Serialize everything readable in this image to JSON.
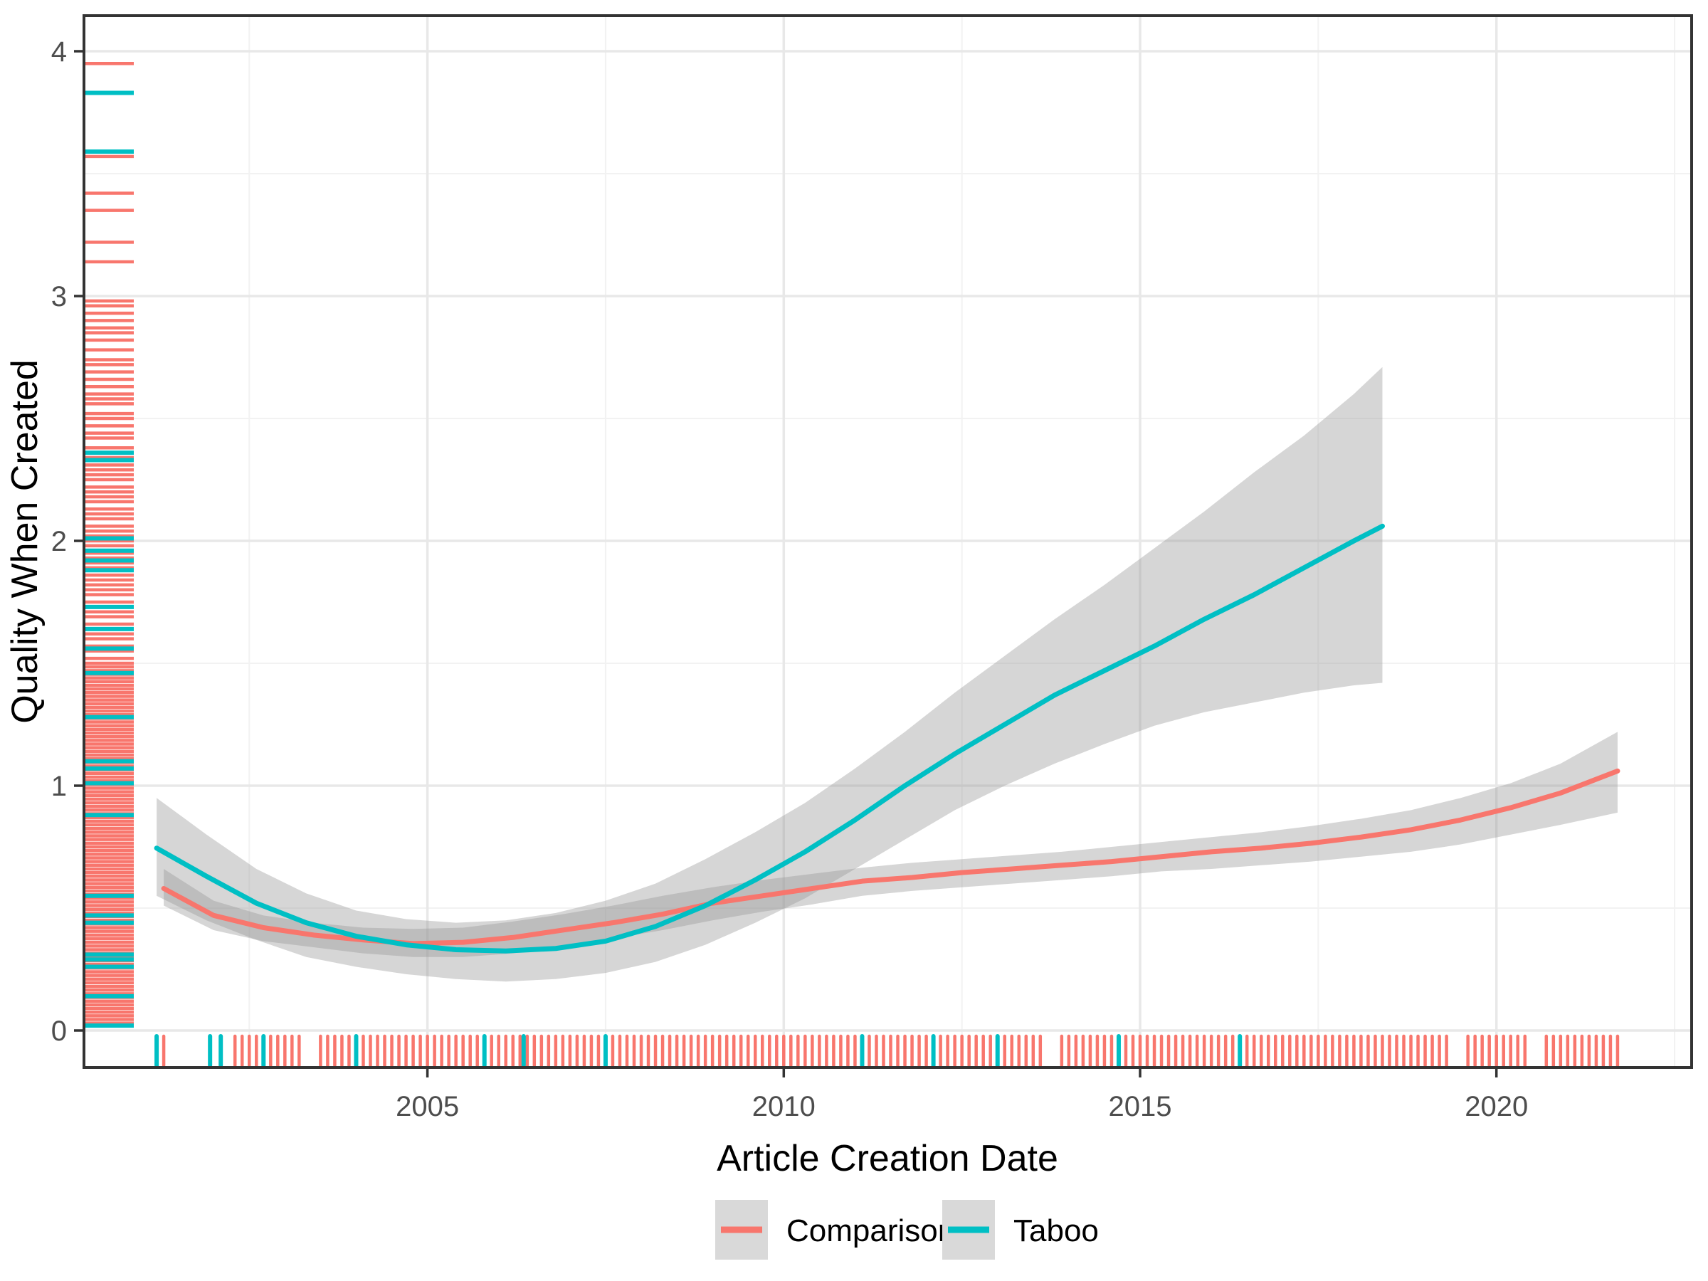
{
  "chart_data": {
    "type": "line",
    "title": "",
    "xlabel": "Article Creation Date",
    "ylabel": "Quality When Created",
    "xlim": [
      2000.18,
      2022.74
    ],
    "ylim": [
      -0.151,
      4.145
    ],
    "grid": true,
    "legend_position": "bottom",
    "x_ticks": [
      2005,
      2010,
      2015,
      2020
    ],
    "x_tick_labels": [
      "2005",
      "2010",
      "2015",
      "2020"
    ],
    "x_minor": [
      2002.5,
      2007.5,
      2012.5,
      2017.5,
      2022.5
    ],
    "y_ticks": [
      0,
      1,
      2,
      3,
      4
    ],
    "y_tick_labels": [
      "0",
      "1",
      "2",
      "3",
      "4"
    ],
    "y_minor": [
      0.5,
      1.5,
      2.5,
      3.5
    ],
    "ci_color": "#999999",
    "ci_opacity": 0.4,
    "panel_border_color": "#333333",
    "grid_major_color": "#e8e8e8",
    "grid_minor_color": "#f2f2f2",
    "series": [
      {
        "name": "Comparison",
        "color": "#F8766D",
        "x": [
          2001.3,
          2002,
          2002.7,
          2003.4,
          2004.1,
          2004.8,
          2005.5,
          2006.2,
          2006.9,
          2007.6,
          2008.3,
          2009,
          2009.7,
          2010.4,
          2011.1,
          2011.8,
          2012.5,
          2013.2,
          2013.9,
          2014.6,
          2015.3,
          2016,
          2016.7,
          2017.4,
          2018.1,
          2018.8,
          2019.5,
          2020.2,
          2020.9,
          2021.7
        ],
        "y": [
          0.58,
          0.47,
          0.42,
          0.39,
          0.37,
          0.355,
          0.36,
          0.38,
          0.41,
          0.44,
          0.475,
          0.52,
          0.55,
          0.58,
          0.61,
          0.625,
          0.645,
          0.66,
          0.675,
          0.69,
          0.71,
          0.73,
          0.745,
          0.765,
          0.79,
          0.82,
          0.86,
          0.91,
          0.97,
          1.06
        ],
        "ci_upper": [
          0.66,
          0.53,
          0.47,
          0.44,
          0.42,
          0.415,
          0.42,
          0.445,
          0.475,
          0.51,
          0.55,
          0.585,
          0.615,
          0.64,
          0.665,
          0.685,
          0.7,
          0.715,
          0.73,
          0.75,
          0.77,
          0.79,
          0.81,
          0.835,
          0.865,
          0.9,
          0.95,
          1.01,
          1.09,
          1.22
        ],
        "ci_lower": [
          0.51,
          0.41,
          0.365,
          0.34,
          0.315,
          0.3,
          0.3,
          0.315,
          0.345,
          0.375,
          0.41,
          0.45,
          0.485,
          0.515,
          0.55,
          0.57,
          0.585,
          0.6,
          0.615,
          0.63,
          0.65,
          0.66,
          0.675,
          0.69,
          0.71,
          0.73,
          0.76,
          0.8,
          0.84,
          0.89
        ]
      },
      {
        "name": "Taboo",
        "color": "#00BFC4",
        "x": [
          2001.2,
          2001.9,
          2002.6,
          2003.3,
          2004,
          2004.7,
          2005.4,
          2006.1,
          2006.8,
          2007.5,
          2008.2,
          2008.9,
          2009.6,
          2010.3,
          2011,
          2011.7,
          2012.4,
          2013.1,
          2013.8,
          2014.5,
          2015.2,
          2015.9,
          2016.6,
          2017.3,
          2018,
          2018.4
        ],
        "y": [
          0.745,
          0.63,
          0.52,
          0.44,
          0.385,
          0.35,
          0.33,
          0.325,
          0.335,
          0.365,
          0.425,
          0.51,
          0.615,
          0.73,
          0.86,
          1.0,
          1.13,
          1.25,
          1.37,
          1.47,
          1.57,
          1.68,
          1.78,
          1.89,
          2.0,
          2.06
        ],
        "ci_upper": [
          0.95,
          0.8,
          0.66,
          0.56,
          0.49,
          0.455,
          0.44,
          0.45,
          0.48,
          0.53,
          0.6,
          0.7,
          0.81,
          0.93,
          1.07,
          1.22,
          1.38,
          1.53,
          1.68,
          1.82,
          1.97,
          2.12,
          2.28,
          2.43,
          2.6,
          2.71
        ],
        "ci_lower": [
          0.55,
          0.45,
          0.37,
          0.3,
          0.26,
          0.23,
          0.21,
          0.2,
          0.21,
          0.235,
          0.28,
          0.35,
          0.44,
          0.54,
          0.66,
          0.78,
          0.9,
          1.0,
          1.09,
          1.17,
          1.245,
          1.3,
          1.34,
          1.38,
          1.41,
          1.42
        ]
      }
    ],
    "rug_left": {
      "comparison": [
        3.95,
        3.57,
        3.42,
        3.35,
        3.22,
        3.14,
        2.98,
        2.96,
        2.93,
        2.9,
        2.87,
        2.85,
        2.82,
        2.78,
        2.74,
        2.72,
        2.69,
        2.66,
        2.63,
        2.6,
        2.58,
        2.56,
        2.52,
        2.5,
        2.47,
        2.44,
        2.42,
        2.38,
        2.36,
        2.34,
        2.31,
        2.29,
        2.27,
        2.25,
        2.22,
        2.2,
        2.18,
        2.16,
        2.13,
        2.11,
        2.09,
        2.06,
        2.04,
        2.02,
        2.0,
        1.98,
        1.95,
        1.93,
        1.91,
        1.89,
        1.86,
        1.84,
        1.82,
        1.8,
        1.78,
        1.75,
        1.73,
        1.71,
        1.69,
        1.66,
        1.64,
        1.62,
        1.6,
        1.57,
        1.55,
        1.52,
        1.5,
        1.485,
        1.47,
        1.455,
        1.44,
        1.425,
        1.41,
        1.395,
        1.38,
        1.365,
        1.35,
        1.335,
        1.32,
        1.305,
        1.29,
        1.275,
        1.26,
        1.245,
        1.23,
        1.215,
        1.2,
        1.185,
        1.17,
        1.155,
        1.14,
        1.125,
        1.11,
        1.095,
        1.08,
        1.065,
        1.05,
        1.035,
        1.02,
        1.005,
        0.99,
        0.975,
        0.96,
        0.945,
        0.93,
        0.915,
        0.9,
        0.885,
        0.87,
        0.855,
        0.84,
        0.825,
        0.81,
        0.795,
        0.78,
        0.765,
        0.75,
        0.735,
        0.72,
        0.705,
        0.69,
        0.675,
        0.66,
        0.645,
        0.63,
        0.615,
        0.6,
        0.585,
        0.57,
        0.555,
        0.54,
        0.525,
        0.51,
        0.495,
        0.48,
        0.465,
        0.45,
        0.435,
        0.42,
        0.405,
        0.39,
        0.375,
        0.36,
        0.345,
        0.33,
        0.315,
        0.3,
        0.285,
        0.27,
        0.255,
        0.24,
        0.225,
        0.21,
        0.195,
        0.18,
        0.165,
        0.15,
        0.135,
        0.12,
        0.105,
        0.09,
        0.075,
        0.06,
        0.045,
        0.03
      ],
      "taboo": [
        3.83,
        3.59,
        2.36,
        2.33,
        2.01,
        1.96,
        1.92,
        1.88,
        1.73,
        1.64,
        1.56,
        1.46,
        1.28,
        1.1,
        1.07,
        1.01,
        0.88,
        0.55,
        0.47,
        0.44,
        0.31,
        0.29,
        0.26,
        0.14,
        0.02
      ]
    },
    "rug_bottom": {
      "comparison": [
        2001.3,
        2002.3,
        2002.4,
        2002.5,
        2002.6,
        2002.7,
        2002.8,
        2002.9,
        2003,
        2003.1,
        2003.2,
        2003.5,
        2003.6,
        2003.7,
        2003.8,
        2003.9,
        2004,
        2004.1,
        2004.2,
        2004.3,
        2004.4,
        2004.5,
        2004.6,
        2004.7,
        2004.8,
        2004.9,
        2005,
        2005.1,
        2005.2,
        2005.3,
        2005.4,
        2005.5,
        2005.6,
        2005.7,
        2005.8,
        2005.9,
        2006,
        2006.1,
        2006.2,
        2006.3,
        2006.4,
        2006.5,
        2006.6,
        2006.7,
        2006.8,
        2006.9,
        2007,
        2007.1,
        2007.2,
        2007.3,
        2007.4,
        2007.5,
        2007.6,
        2007.7,
        2007.8,
        2007.9,
        2008,
        2008.1,
        2008.2,
        2008.3,
        2008.4,
        2008.5,
        2008.6,
        2008.7,
        2008.8,
        2008.9,
        2009,
        2009.1,
        2009.2,
        2009.3,
        2009.4,
        2009.5,
        2009.6,
        2009.7,
        2009.8,
        2009.9,
        2010,
        2010.1,
        2010.2,
        2010.3,
        2010.4,
        2010.5,
        2010.6,
        2010.7,
        2010.8,
        2010.9,
        2011,
        2011.1,
        2011.2,
        2011.3,
        2011.4,
        2011.5,
        2011.6,
        2011.7,
        2011.8,
        2011.9,
        2012,
        2012.1,
        2012.2,
        2012.3,
        2012.4,
        2012.5,
        2012.6,
        2012.7,
        2012.8,
        2012.9,
        2013,
        2013.1,
        2013.2,
        2013.3,
        2013.4,
        2013.5,
        2013.6,
        2013.9,
        2014,
        2014.1,
        2014.2,
        2014.3,
        2014.4,
        2014.5,
        2014.6,
        2014.7,
        2014.8,
        2014.9,
        2015,
        2015.1,
        2015.2,
        2015.3,
        2015.4,
        2015.5,
        2015.6,
        2015.7,
        2015.8,
        2015.9,
        2016,
        2016.1,
        2016.2,
        2016.3,
        2016.4,
        2016.5,
        2016.6,
        2016.7,
        2016.8,
        2016.9,
        2017,
        2017.1,
        2017.2,
        2017.3,
        2017.4,
        2017.5,
        2017.6,
        2017.7,
        2017.8,
        2017.9,
        2018,
        2018.1,
        2018.2,
        2018.3,
        2018.4,
        2018.5,
        2018.6,
        2018.7,
        2018.8,
        2018.9,
        2019,
        2019.1,
        2019.2,
        2019.3,
        2019.6,
        2019.7,
        2019.8,
        2019.9,
        2020,
        2020.1,
        2020.2,
        2020.3,
        2020.4,
        2020.7,
        2020.8,
        2020.9,
        2021,
        2021.1,
        2021.2,
        2021.3,
        2021.4,
        2021.5,
        2021.6,
        2021.7
      ],
      "taboo": [
        2001.2,
        2001.95,
        2002.1,
        2002.7,
        2004.0,
        2005.8,
        2006.35,
        2007.5,
        2011.1,
        2012.1,
        2013.0,
        2014.7,
        2016.4
      ]
    }
  },
  "legend": {
    "key_fill": "#D9D9D9",
    "items": [
      {
        "label": "Comparison",
        "color": "#F8766D"
      },
      {
        "label": "Taboo",
        "color": "#00BFC4"
      }
    ]
  }
}
